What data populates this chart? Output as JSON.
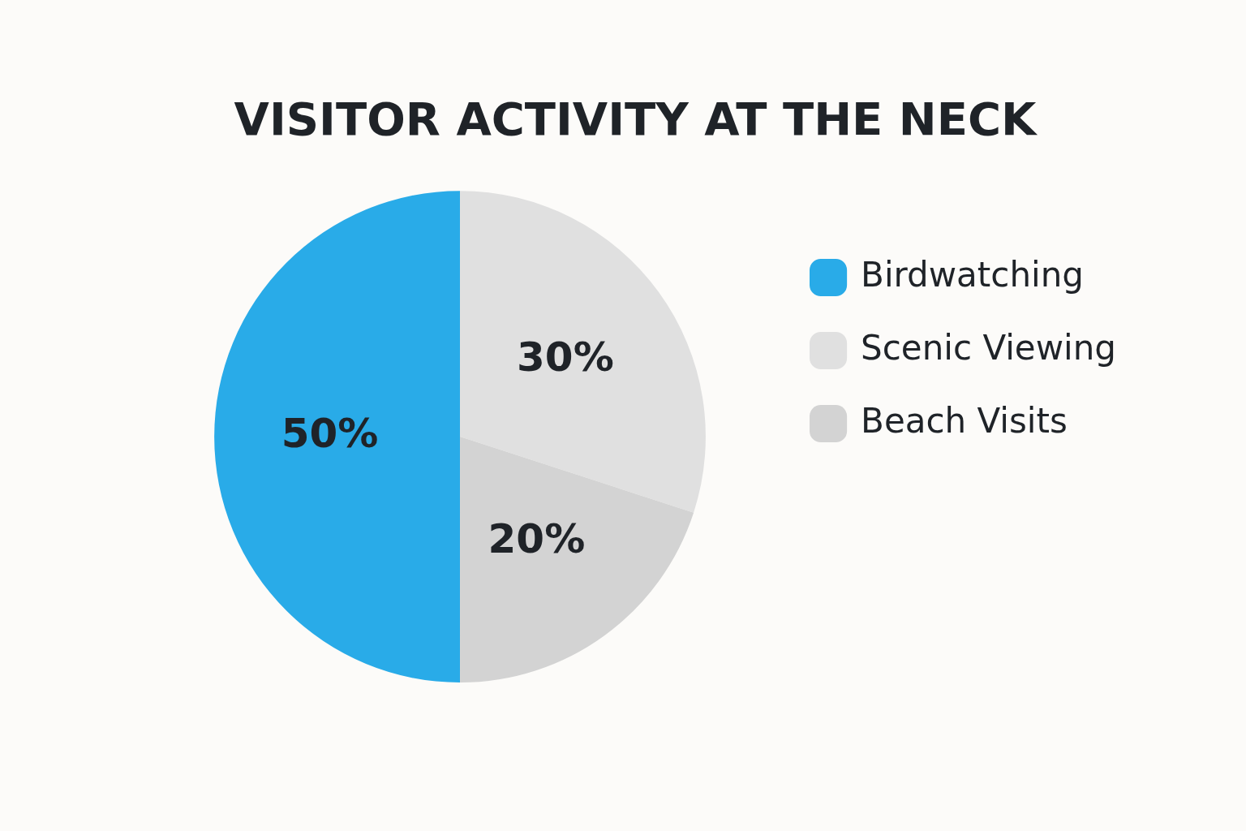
{
  "chart_data": {
    "type": "pie",
    "title": "VISITOR ACTIVITY AT THE NECK",
    "categories": [
      "Birdwatching",
      "Scenic Viewing",
      "Beach Visits"
    ],
    "values": [
      50,
      30,
      20
    ],
    "colors": [
      "#29abe8",
      "#e0e0e0",
      "#d3d3d3"
    ],
    "value_labels": [
      "50%",
      "30%",
      "20%"
    ],
    "legend": "right"
  }
}
